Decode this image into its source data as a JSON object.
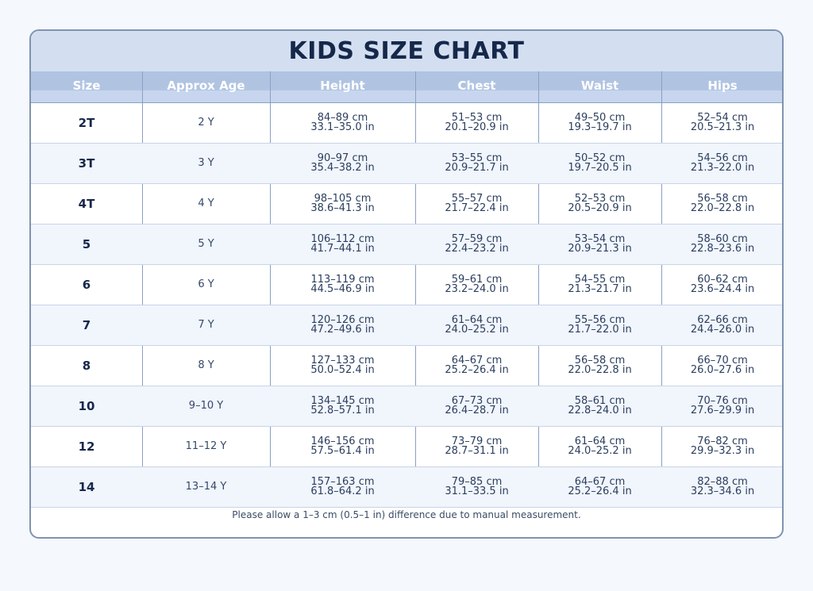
{
  "title": "KIDS SIZE CHART",
  "columns": [
    "Size",
    "Approx Age",
    "Height",
    "Chest",
    "Waist",
    "Hips"
  ],
  "rows": [
    {
      "size": "2T",
      "age": "2 Y",
      "height": [
        "84–89 cm",
        "33.1–35.0 in"
      ],
      "chest": [
        "51–53 cm",
        "20.1–20.9 in"
      ],
      "waist": [
        "49–50 cm",
        "19.3–19.7 in"
      ],
      "hips": [
        "52–54 cm",
        "20.5–21.3 in"
      ]
    },
    {
      "size": "3T",
      "age": "3 Y",
      "height": [
        "90–97 cm",
        "35.4–38.2 in"
      ],
      "chest": [
        "53–55 cm",
        "20.9–21.7 in"
      ],
      "waist": [
        "50–52 cm",
        "19.7–20.5 in"
      ],
      "hips": [
        "54–56 cm",
        "21.3–22.0 in"
      ]
    },
    {
      "size": "4T",
      "age": "4 Y",
      "height": [
        "98–105 cm",
        "38.6–41.3 in"
      ],
      "chest": [
        "55–57 cm",
        "21.7–22.4 in"
      ],
      "waist": [
        "52–53 cm",
        "20.5–20.9 in"
      ],
      "hips": [
        "56–58 cm",
        "22.0–22.8 in"
      ]
    },
    {
      "size": "5",
      "age": "5 Y",
      "height": [
        "106–112 cm",
        "41.7–44.1 in"
      ],
      "chest": [
        "57–59 cm",
        "22.4–23.2 in"
      ],
      "waist": [
        "53–54 cm",
        "20.9–21.3 in"
      ],
      "hips": [
        "58–60 cm",
        "22.8–23.6 in"
      ]
    },
    {
      "size": "6",
      "age": "6 Y",
      "height": [
        "113–119 cm",
        "44.5–46.9 in"
      ],
      "chest": [
        "59–61 cm",
        "23.2–24.0 in"
      ],
      "waist": [
        "54–55 cm",
        "21.3–21.7 in"
      ],
      "hips": [
        "60–62 cm",
        "23.6–24.4 in"
      ]
    },
    {
      "size": "7",
      "age": "7 Y",
      "height": [
        "120–126 cm",
        "47.2–49.6 in"
      ],
      "chest": [
        "61–64 cm",
        "24.0–25.2 in"
      ],
      "waist": [
        "55–56 cm",
        "21.7–22.0 in"
      ],
      "hips": [
        "62–66 cm",
        "24.4–26.0 in"
      ]
    },
    {
      "size": "8",
      "age": "8 Y",
      "height": [
        "127–133 cm",
        "50.0–52.4 in"
      ],
      "chest": [
        "64–67 cm",
        "25.2–26.4 in"
      ],
      "waist": [
        "56–58 cm",
        "22.0–22.8 in"
      ],
      "hips": [
        "66–70 cm",
        "26.0–27.6 in"
      ]
    },
    {
      "size": "10",
      "age": "9–10 Y",
      "height": [
        "134–145 cm",
        "52.8–57.1 in"
      ],
      "chest": [
        "67–73 cm",
        "26.4–28.7 in"
      ],
      "waist": [
        "58–61 cm",
        "22.8–24.0 in"
      ],
      "hips": [
        "70–76 cm",
        "27.6–29.9 in"
      ]
    },
    {
      "size": "12",
      "age": "11–12 Y",
      "height": [
        "146–156 cm",
        "57.5–61.4 in"
      ],
      "chest": [
        "73–79 cm",
        "28.7–31.1 in"
      ],
      "waist": [
        "61–64 cm",
        "24.0–25.2 in"
      ],
      "hips": [
        "76–82 cm",
        "29.9–32.3 in"
      ]
    },
    {
      "size": "14",
      "age": "13–14 Y",
      "height": [
        "157–163 cm",
        "61.8–64.2 in"
      ],
      "chest": [
        "79–85 cm",
        "31.1–33.5 in"
      ],
      "waist": [
        "64–67 cm",
        "25.2–26.4 in"
      ],
      "hips": [
        "82–88 cm",
        "32.3–34.6 in"
      ]
    }
  ],
  "footnote": "Please allow a 1–3 cm (0.5–1 in) difference due to manual measurement.",
  "colors": {
    "title_bar": "#d3dff1",
    "header_row": "#b0c4e2",
    "title_text": "#16284a",
    "row_alt": "#f1f5fc",
    "border": "#7f93b0"
  }
}
